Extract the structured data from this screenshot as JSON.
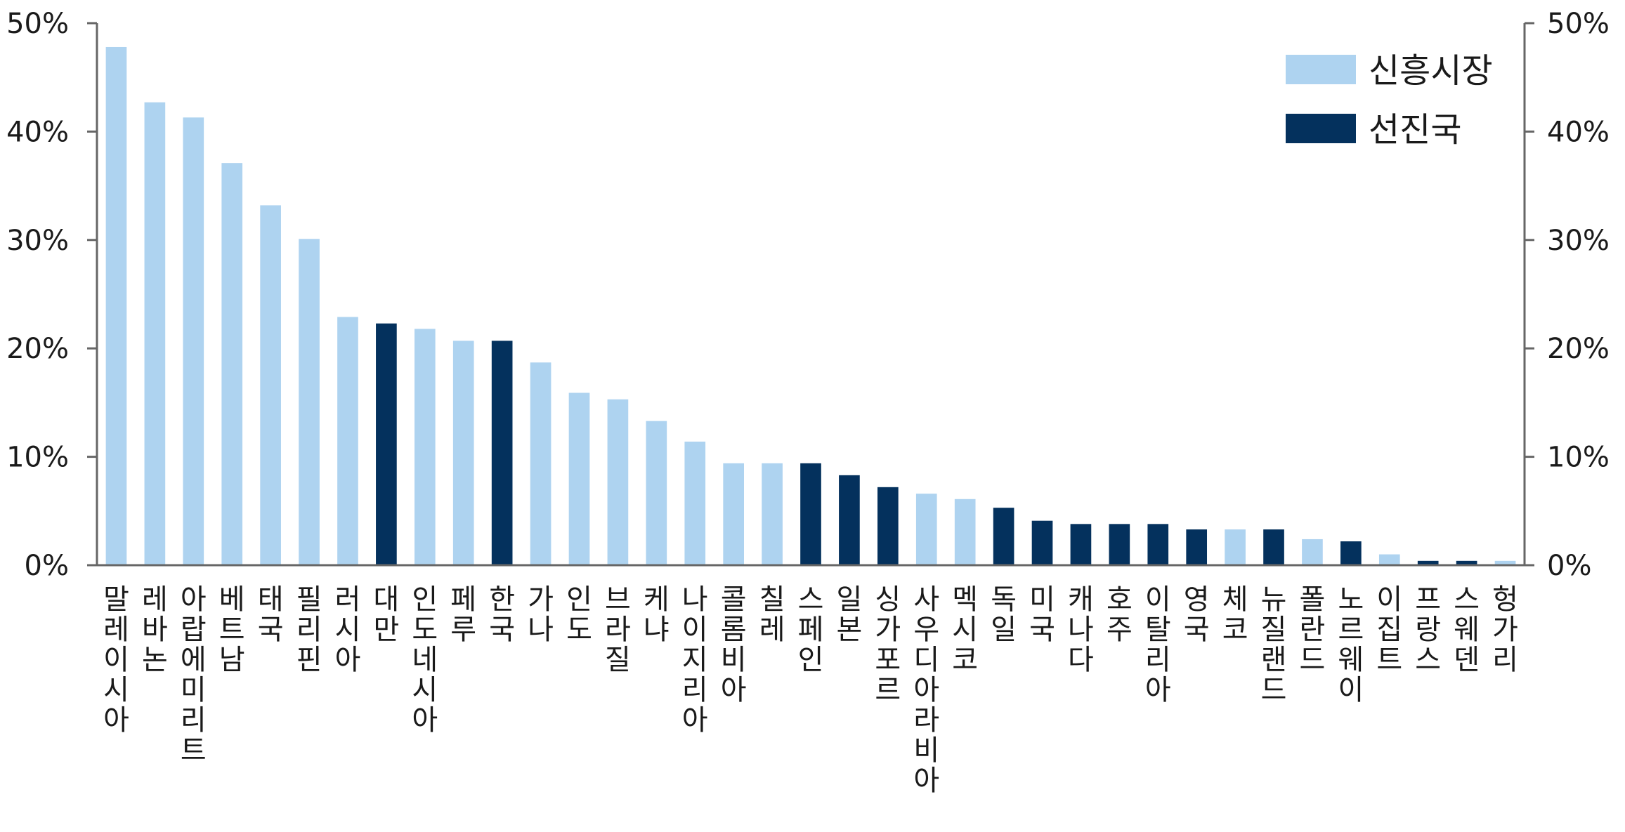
{
  "chart_data": {
    "type": "bar",
    "title": "",
    "xlabel": "",
    "ylabel": "",
    "ylim": [
      0,
      50
    ],
    "y_ticks": [
      "0%",
      "10%",
      "20%",
      "30%",
      "40%",
      "50%"
    ],
    "y_tick_values": [
      0,
      10,
      20,
      30,
      40,
      50
    ],
    "grid": false,
    "legend_position": "top-right",
    "legend": [
      {
        "group": "emerging",
        "label": "신흥시장",
        "color": "#aed3f0"
      },
      {
        "group": "developed",
        "label": "선진국",
        "color": "#04315d"
      }
    ],
    "categories": [
      "말레이시아",
      "레바논",
      "아랍에미리트",
      "베트남",
      "태국",
      "필리핀",
      "러시아",
      "대만",
      "인도네시아",
      "페루",
      "한국",
      "가나",
      "인도",
      "브라질",
      "케냐",
      "나이지리아",
      "콜롬비아",
      "칠레",
      "스페인",
      "일본",
      "싱가포르",
      "사우디아라비아",
      "멕시코",
      "독일",
      "미국",
      "캐나다",
      "호주",
      "이탈리아",
      "영국",
      "체코",
      "뉴질랜드",
      "폴란드",
      "노르웨이",
      "이집트",
      "프랑스",
      "스웨덴",
      "헝가리"
    ],
    "values": [
      47.8,
      42.7,
      41.3,
      37.1,
      33.2,
      30.1,
      22.9,
      22.3,
      21.8,
      20.7,
      20.7,
      18.7,
      15.9,
      15.3,
      13.3,
      11.4,
      9.4,
      9.4,
      9.4,
      8.3,
      7.2,
      6.6,
      6.1,
      5.3,
      4.1,
      3.8,
      3.8,
      3.8,
      3.3,
      3.3,
      3.3,
      2.4,
      2.2,
      1.0,
      0.4,
      0.4,
      0.4
    ],
    "groups": [
      "emerging",
      "emerging",
      "emerging",
      "emerging",
      "emerging",
      "emerging",
      "emerging",
      "developed",
      "emerging",
      "emerging",
      "developed",
      "emerging",
      "emerging",
      "emerging",
      "emerging",
      "emerging",
      "emerging",
      "emerging",
      "developed",
      "developed",
      "developed",
      "emerging",
      "emerging",
      "developed",
      "developed",
      "developed",
      "developed",
      "developed",
      "developed",
      "emerging",
      "developed",
      "emerging",
      "developed",
      "emerging",
      "developed",
      "developed",
      "emerging"
    ]
  }
}
